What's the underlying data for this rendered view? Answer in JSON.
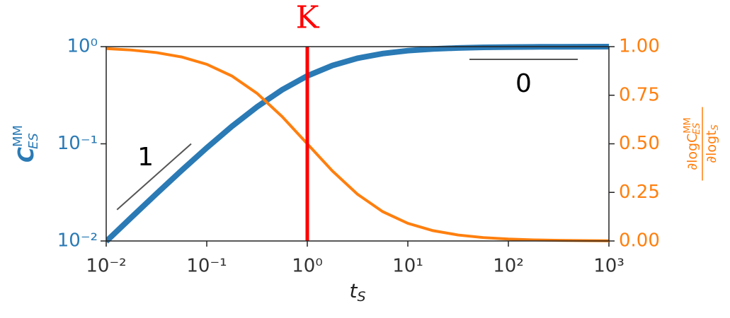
{
  "chart_data": {
    "type": "line",
    "xlabel": {
      "main": "t",
      "sub": "S"
    },
    "ylabel": {
      "main": "C",
      "sup": "MM",
      "sub": "ES"
    },
    "y2label": {
      "numerator": {
        "main": "∂logC",
        "sup": "MM",
        "sub": "ES"
      },
      "denominator": {
        "main": "∂logt",
        "sub": "S"
      }
    },
    "xscale": "log",
    "yscale": "log",
    "y2scale": "linear",
    "x": [
      0.01,
      0.01778,
      0.03162,
      0.05623,
      0.1,
      0.1778,
      0.3162,
      0.5623,
      1,
      1.778,
      3.162,
      5.623,
      10,
      17.78,
      31.62,
      56.23,
      100,
      177.8,
      316.2,
      562.3,
      1000
    ],
    "series": [
      {
        "name": "C",
        "color": "#2a7ab5",
        "axis": "y",
        "width": 8,
        "values": [
          0.0099,
          0.01747,
          0.03065,
          0.05324,
          0.0909,
          0.151,
          0.2402,
          0.3599,
          0.5,
          0.64,
          0.7597,
          0.849,
          0.9091,
          0.9468,
          0.9693,
          0.9825,
          0.9901,
          0.9944,
          0.9968,
          0.9982,
          0.999
        ]
      },
      {
        "name": "dlogC/dlogt",
        "color": "#ff7f0e",
        "axis": "y2",
        "width": 4,
        "values": [
          0.9901,
          0.9825,
          0.9693,
          0.9468,
          0.9091,
          0.849,
          0.7597,
          0.64,
          0.5,
          0.36,
          0.2403,
          0.151,
          0.0909,
          0.0532,
          0.0307,
          0.0175,
          0.0099,
          0.0056,
          0.0032,
          0.0018,
          0.001
        ]
      }
    ],
    "xlim": [
      0.01,
      1000
    ],
    "xticks": [
      {
        "value": 0.01,
        "label": "10⁻²"
      },
      {
        "value": 0.1,
        "label": "10⁻¹"
      },
      {
        "value": 1,
        "label": "10⁰"
      },
      {
        "value": 10,
        "label": "10¹"
      },
      {
        "value": 100,
        "label": "10²"
      },
      {
        "value": 1000,
        "label": "10³"
      }
    ],
    "ylim": [
      0.01,
      1
    ],
    "yticks": [
      {
        "value": 0.01,
        "label": "10⁻²"
      },
      {
        "value": 0.1,
        "label": "10⁻¹"
      },
      {
        "value": 1,
        "label": "10⁰"
      }
    ],
    "y2lim": [
      0,
      1
    ],
    "y2ticks": [
      {
        "value": 0,
        "label": "0.00"
      },
      {
        "value": 0.25,
        "label": "0.25"
      },
      {
        "value": 0.5,
        "label": "0.50"
      },
      {
        "value": 0.75,
        "label": "0.75"
      },
      {
        "value": 1,
        "label": "1.00"
      }
    ],
    "vline": {
      "x": 1,
      "label": "K",
      "color": "#ff0000"
    },
    "slope_lines": [
      {
        "label": "1",
        "x": [
          0.0128,
          0.07
        ],
        "y": [
          0.021,
          0.1
        ]
      },
      {
        "label": "0",
        "x": [
          41,
          490
        ],
        "y": [
          0.74,
          0.74
        ]
      }
    ]
  }
}
